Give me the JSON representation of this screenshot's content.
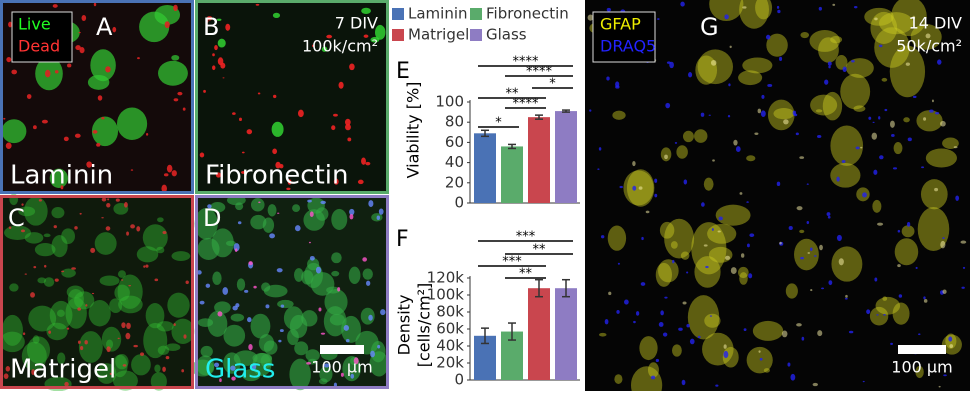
{
  "panels": {
    "A": {
      "label": "A",
      "live": "Live",
      "dead": "Dead",
      "name": "Laminin"
    },
    "B": {
      "label": "B",
      "div": "7 DIV",
      "density": "100k/cm²",
      "name": "Fibronectin"
    },
    "C": {
      "label": "C",
      "name": "Matrigel"
    },
    "D": {
      "label": "D",
      "name": "Glass",
      "scale": "100 µm"
    },
    "G": {
      "label": "G",
      "stain1": "GFAP",
      "stain2": "DRAQ5",
      "div": "14 DIV",
      "density": "50k/cm²",
      "scale": "100 µm"
    }
  },
  "chart_data": [
    {
      "type": "bar",
      "panel_label": "E",
      "y_label": "Viability [%]",
      "legend": "top",
      "series": [
        {
          "name": "Laminin",
          "color": "#4a72b5",
          "values": [
            69
          ],
          "errors": [
            3
          ]
        },
        {
          "name": "Fibronectin",
          "color": "#5aab6b",
          "values": [
            56
          ],
          "errors": [
            2
          ]
        },
        {
          "name": "Matrigel",
          "color": "#c9464e",
          "values": [
            85
          ],
          "errors": [
            2
          ]
        },
        {
          "name": "Glass",
          "color": "#8e7cc3",
          "values": [
            91
          ],
          "errors": [
            1
          ]
        }
      ],
      "ylim": [
        0,
        100
      ],
      "yticks": [
        0,
        20,
        40,
        60,
        80,
        100
      ],
      "annotations": [
        "****",
        "****",
        "*",
        "**",
        "****",
        "*"
      ]
    },
    {
      "type": "bar",
      "panel_label": "F",
      "y_label": [
        "Density",
        "[cells/cm²]"
      ],
      "series": [
        {
          "color": "#4a72b5",
          "values": [
            52000
          ],
          "errors": [
            9000
          ]
        },
        {
          "color": "#5aab6b",
          "values": [
            57000
          ],
          "errors": [
            10000
          ]
        },
        {
          "color": "#c9464e",
          "values": [
            108000
          ],
          "errors": [
            10000
          ]
        },
        {
          "color": "#8e7cc3",
          "values": [
            108000
          ],
          "errors": [
            10000
          ]
        }
      ],
      "ylim": [
        0,
        120000
      ],
      "yticks": [
        0,
        {
          "value": 20000,
          "label": "20k"
        },
        {
          "value": 40000,
          "label": "40k"
        },
        {
          "value": 60000,
          "label": "60k"
        },
        {
          "value": 80000,
          "label": "80k"
        },
        {
          "value": 100000,
          "label": "100k"
        },
        {
          "value": 120000,
          "label": "120k"
        }
      ],
      "annotations": [
        "***",
        "**",
        "***",
        "**"
      ]
    }
  ]
}
